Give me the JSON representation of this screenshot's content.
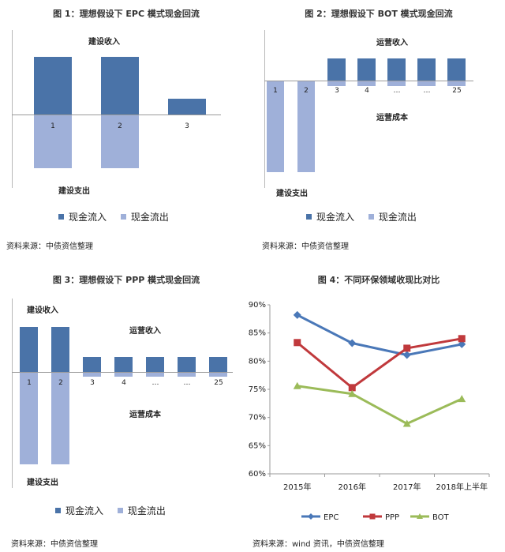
{
  "fig1": {
    "title": "图 1：理想假设下 EPC 模式现金回流",
    "top_label": "建设收入",
    "bottom_label": "建设支出",
    "bars": [
      "1",
      "2",
      "3"
    ],
    "legend": [
      "现金流入",
      "现金流出"
    ],
    "source": "资料来源：中债资信整理",
    "colors": {
      "inflow": "#4a73a8",
      "outflow": "#9fb0d9"
    }
  },
  "fig2": {
    "title": "图 2：理想假设下 BOT 模式现金回流",
    "top_label": "运营收入",
    "mid_label": "运营成本",
    "bottom_label": "建设支出",
    "bars": [
      "1",
      "2",
      "3",
      "4",
      "…",
      "…",
      "25"
    ],
    "legend": [
      "现金流入",
      "现金流出"
    ],
    "source": "资料来源：中债资信整理"
  },
  "fig3": {
    "title": "图 3：理想假设下 PPP 模式现金回流",
    "top_label": "建设收入",
    "right_top_label": "运营收入",
    "mid_label": "运营成本",
    "bottom_label": "建设支出",
    "bars": [
      "1",
      "2",
      "3",
      "4",
      "…",
      "…",
      "25"
    ],
    "legend": [
      "现金流入",
      "现金流出"
    ],
    "source": "资料来源：中债资信整理"
  },
  "fig4": {
    "title": "图 4：不同环保领域收现比对比",
    "source": "资料来源：wind 资讯，中债资信整理"
  },
  "chart_data": {
    "type": "line",
    "categories": [
      "2015年",
      "2016年",
      "2017年",
      "2018年上半年"
    ],
    "series": [
      {
        "name": "EPC",
        "values": [
          88.2,
          83.2,
          81.1,
          83.0
        ],
        "color": "#4a78b8"
      },
      {
        "name": "PPP",
        "values": [
          83.3,
          75.3,
          82.3,
          84.0
        ],
        "color": "#c0393c"
      },
      {
        "name": "BOT",
        "values": [
          75.6,
          74.2,
          68.9,
          73.3
        ],
        "color": "#9bbb59"
      }
    ],
    "yticks": [
      "90%",
      "85%",
      "80%",
      "75%",
      "70%",
      "65%",
      "60%"
    ],
    "ylim": [
      60,
      90
    ],
    "legend_position": "bottom"
  }
}
